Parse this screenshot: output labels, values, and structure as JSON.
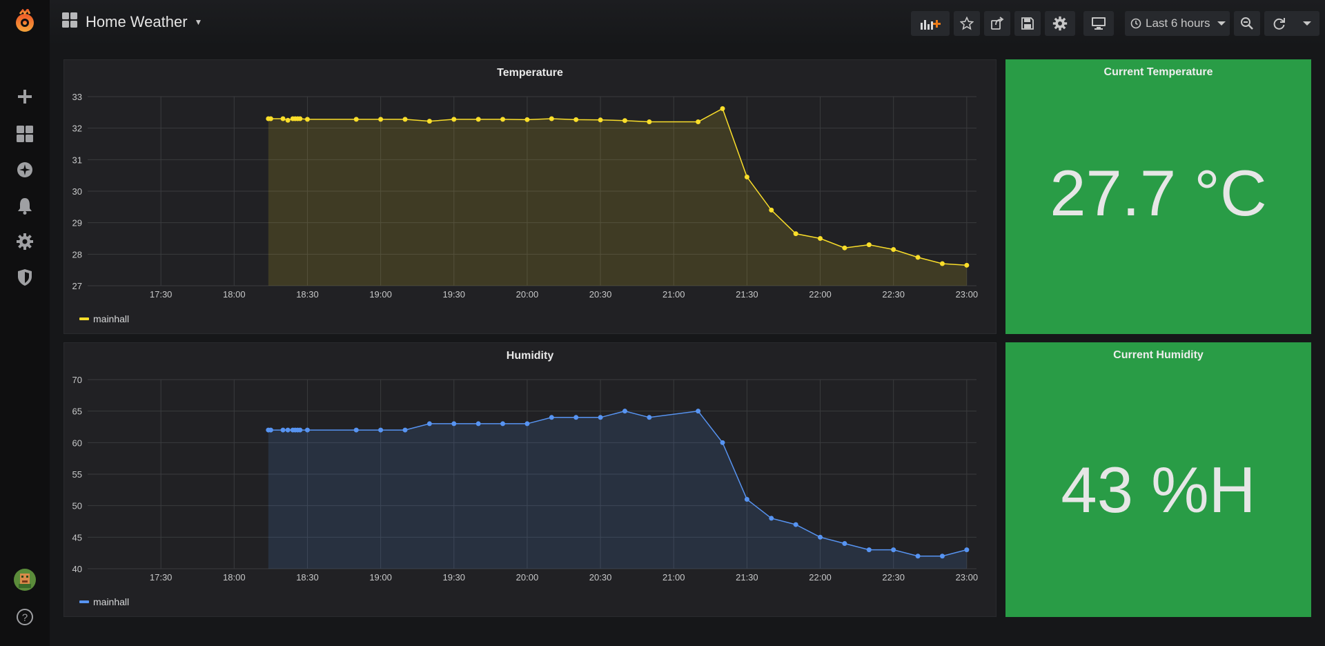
{
  "dashboard": {
    "title": "Home Weather"
  },
  "toolbar": {
    "time_range_label": "Last 6 hours"
  },
  "colors": {
    "temperature_series": "#fade2a",
    "humidity_series": "#5794f2",
    "stat_background": "#299c46"
  },
  "panels": {
    "temperature": {
      "title": "Temperature",
      "legend": "mainhall"
    },
    "humidity": {
      "title": "Humidity",
      "legend": "mainhall"
    },
    "current_temperature": {
      "title": "Current Temperature",
      "value": "27.7 °C"
    },
    "current_humidity": {
      "title": "Current Humidity",
      "value": "43 %H"
    }
  },
  "chart_data": [
    {
      "type": "area",
      "title": "Temperature",
      "x_ticks": [
        "17:30",
        "18:00",
        "18:30",
        "19:00",
        "19:30",
        "20:00",
        "20:30",
        "21:00",
        "21:30",
        "22:00",
        "22:30",
        "23:00"
      ],
      "y_ticks": [
        27,
        28,
        29,
        30,
        31,
        32,
        33
      ],
      "ylim": [
        27,
        33
      ],
      "xlim": [
        "17:00",
        "23:04"
      ],
      "grid": true,
      "legend_position": "bottom-left",
      "series": [
        {
          "name": "mainhall",
          "x": [
            "18:14",
            "18:15",
            "18:20",
            "18:22",
            "18:24",
            "18:25",
            "18:26",
            "18:27",
            "18:30",
            "18:50",
            "19:00",
            "19:10",
            "19:20",
            "19:30",
            "19:40",
            "19:50",
            "20:00",
            "20:10",
            "20:20",
            "20:30",
            "20:40",
            "20:50",
            "21:10",
            "21:20",
            "21:30",
            "21:40",
            "21:50",
            "22:00",
            "22:10",
            "22:20",
            "22:30",
            "22:40",
            "22:50",
            "23:00"
          ],
          "y": [
            32.3,
            32.3,
            32.3,
            32.25,
            32.3,
            32.3,
            32.3,
            32.3,
            32.28,
            32.28,
            32.28,
            32.28,
            32.22,
            32.28,
            32.28,
            32.28,
            32.27,
            32.3,
            32.27,
            32.26,
            32.24,
            32.2,
            32.2,
            32.62,
            30.45,
            29.4,
            28.65,
            28.5,
            28.2,
            28.3,
            28.15,
            27.9,
            27.7,
            27.65
          ]
        }
      ]
    },
    {
      "type": "area",
      "title": "Humidity",
      "x_ticks": [
        "17:30",
        "18:00",
        "18:30",
        "19:00",
        "19:30",
        "20:00",
        "20:30",
        "21:00",
        "21:30",
        "22:00",
        "22:30",
        "23:00"
      ],
      "y_ticks": [
        40,
        45,
        50,
        55,
        60,
        65,
        70
      ],
      "ylim": [
        40,
        70
      ],
      "xlim": [
        "17:00",
        "23:04"
      ],
      "grid": true,
      "legend_position": "bottom-left",
      "series": [
        {
          "name": "mainhall",
          "x": [
            "18:14",
            "18:15",
            "18:20",
            "18:22",
            "18:24",
            "18:25",
            "18:26",
            "18:27",
            "18:30",
            "18:50",
            "19:00",
            "19:10",
            "19:20",
            "19:30",
            "19:40",
            "19:50",
            "20:00",
            "20:10",
            "20:20",
            "20:30",
            "20:40",
            "20:50",
            "21:10",
            "21:20",
            "21:30",
            "21:40",
            "21:50",
            "22:00",
            "22:10",
            "22:20",
            "22:30",
            "22:40",
            "22:50",
            "23:00"
          ],
          "y": [
            62,
            62,
            62,
            62,
            62,
            62,
            62,
            62,
            62,
            62,
            62,
            62,
            63,
            63,
            63,
            63,
            63,
            64,
            64,
            64,
            65,
            64,
            65,
            60,
            51,
            48,
            47,
            45,
            44,
            43,
            43,
            42,
            42,
            43
          ]
        }
      ]
    }
  ]
}
